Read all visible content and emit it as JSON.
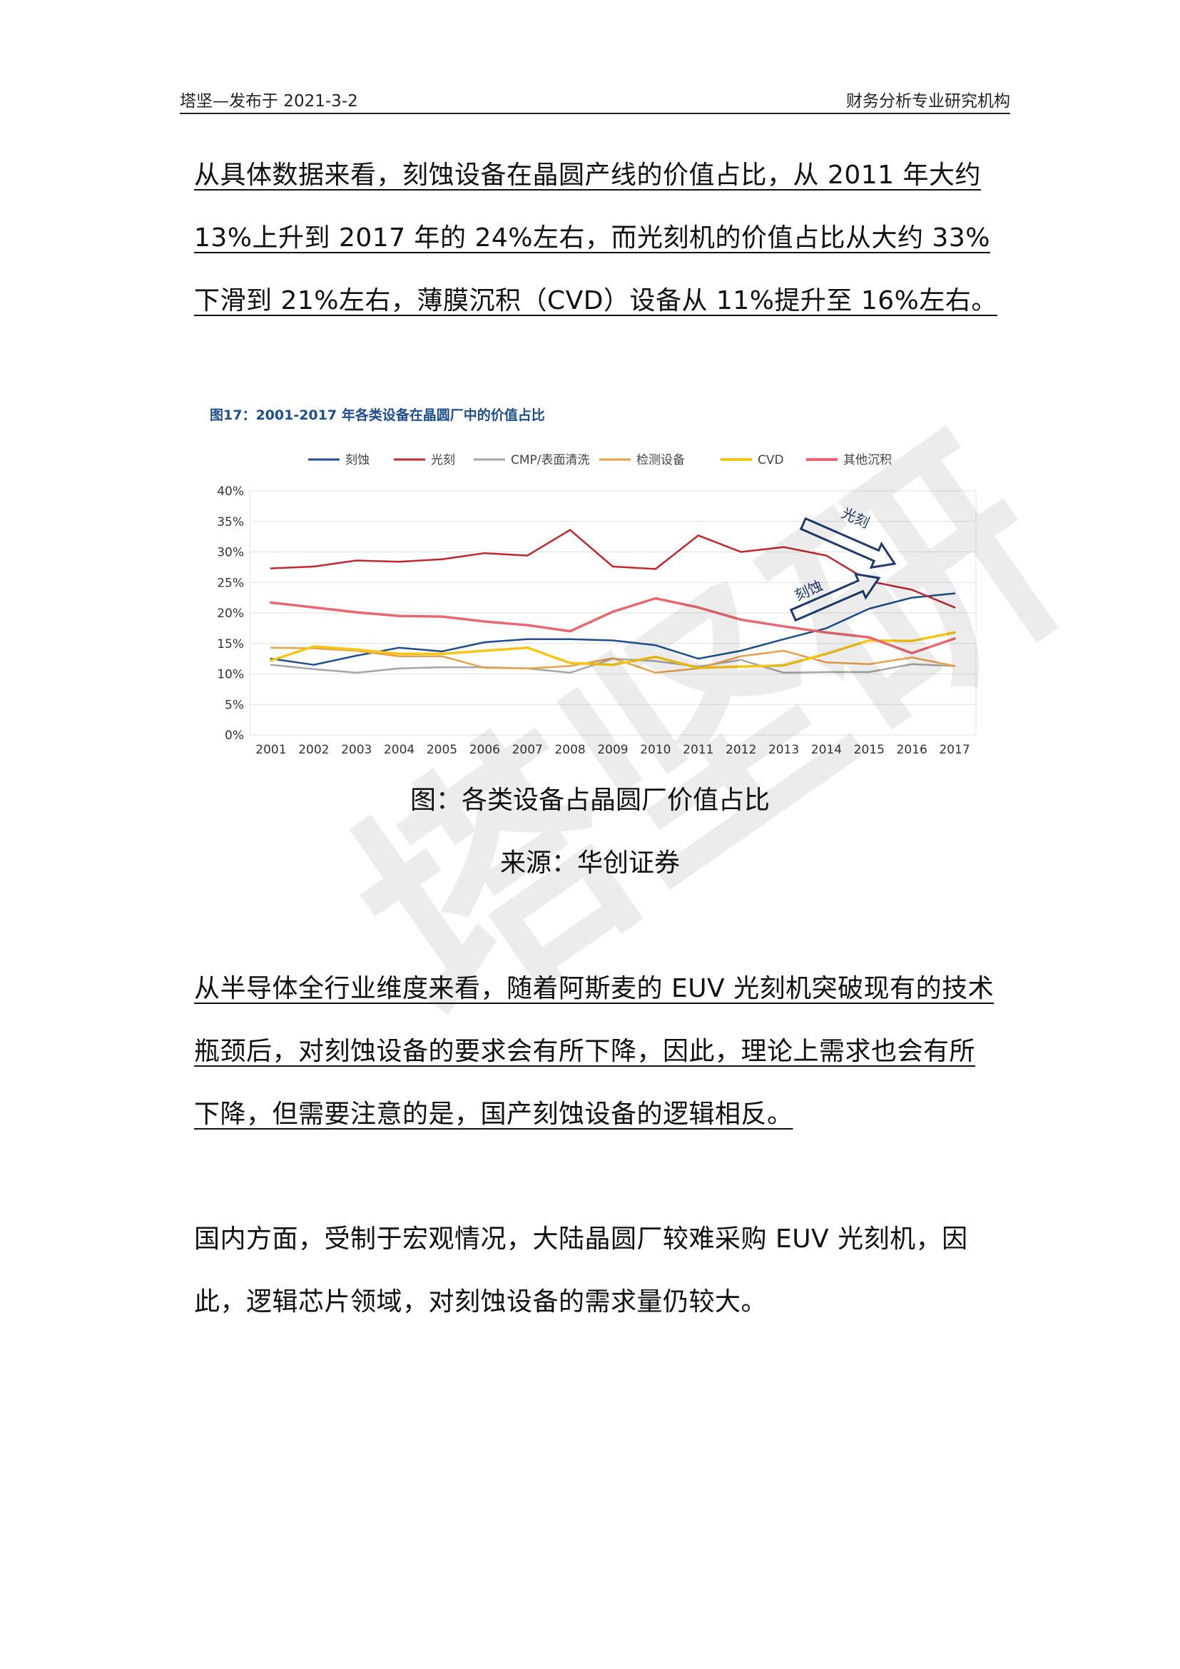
{
  "header": {
    "left": "塔坚—发布于 2021-3-2",
    "right": "财务分析专业研究机构"
  },
  "paragraphs": {
    "p1": "从具体数据来看，刻蚀设备在晶圆产线的价值占比，从 2011 年大约 13%上升到 2017 年的 24%左右，而光刻机的价值占比从大约 33%下滑到 21%左右，薄膜沉积（CVD）设备从 11%提升至 16%左右。",
    "p2": "从半导体全行业维度来看，随着阿斯麦的 EUV 光刻机突破现有的技术瓶颈后，对刻蚀设备的要求会有所下降，因此，理论上需求也会有所下降，但需要注意的是，国产刻蚀设备的逻辑相反。",
    "p3": "国内方面，受制于宏观情况，大陆晶圆厂较难采购 EUV 光刻机，因此，逻辑芯片领域，对刻蚀设备的需求量仍较大。"
  },
  "captions": {
    "figure": "图：各类设备占晶圆厂价值占比",
    "source": "来源：华创证券"
  },
  "watermark": "塔坚研",
  "chart_data": {
    "type": "line",
    "title": "图17：2001-2017 年各类设备在晶圆厂中的价值占比",
    "x": [
      "2001",
      "2002",
      "2003",
      "2004",
      "2005",
      "2006",
      "2007",
      "2008",
      "2009",
      "2010",
      "2011",
      "2012",
      "2013",
      "2014",
      "2015",
      "2016",
      "2017"
    ],
    "ylim": [
      0,
      40
    ],
    "yticks": [
      "0%",
      "5%",
      "10%",
      "15%",
      "20%",
      "25%",
      "30%",
      "35%",
      "40%"
    ],
    "grid": true,
    "legend": "top",
    "series": [
      {
        "name": "刻蚀",
        "color": "#1f4e8c",
        "width": 2.5,
        "values": [
          12.5,
          11.5,
          13,
          14.3,
          13.7,
          15.2,
          15.7,
          15.7,
          15.5,
          14.7,
          12.5,
          13.8,
          15.7,
          17.5,
          20.7,
          22.5,
          23.2
        ]
      },
      {
        "name": "光刻",
        "color": "#c0282d",
        "width": 2.5,
        "values": [
          27.3,
          27.6,
          28.6,
          28.4,
          28.8,
          29.8,
          29.4,
          33.6,
          27.6,
          27.2,
          32.7,
          30.0,
          30.8,
          29.4,
          25.2,
          23.8,
          20.9
        ]
      },
      {
        "name": "CMP/表面清洗",
        "color": "#a6a6a6",
        "width": 2.5,
        "values": [
          11.5,
          10.8,
          10.2,
          10.9,
          11.1,
          11.1,
          10.9,
          10.2,
          12.5,
          12.1,
          11.2,
          12.3,
          10.2,
          10.3,
          10.3,
          11.6,
          11.3
        ]
      },
      {
        "name": "检测设备",
        "color": "#e8a14a",
        "width": 2.5,
        "values": [
          14.3,
          14.2,
          13.8,
          12.9,
          12.9,
          11.0,
          10.9,
          11.3,
          12.6,
          10.2,
          10.9,
          12.9,
          13.8,
          11.9,
          11.6,
          12.7,
          11.3
        ]
      },
      {
        "name": "CVD",
        "color": "#f5c518",
        "width": 3.5,
        "values": [
          12.2,
          14.5,
          14.0,
          13.3,
          13.3,
          13.8,
          14.3,
          11.8,
          11.5,
          12.8,
          11.0,
          11.2,
          11.4,
          13.3,
          15.5,
          15.4,
          16.8
        ]
      },
      {
        "name": "其他沉积",
        "color": "#e86870",
        "width": 3.5,
        "values": [
          21.7,
          20.9,
          20.1,
          19.5,
          19.4,
          18.6,
          18.0,
          17.0,
          20.2,
          22.4,
          20.9,
          18.9,
          17.8,
          16.8,
          16.0,
          13.4,
          15.8
        ]
      }
    ],
    "annotations": [
      {
        "text": "光刻",
        "kind": "arrow-down"
      },
      {
        "text": "刻蚀",
        "kind": "arrow-up"
      }
    ]
  }
}
